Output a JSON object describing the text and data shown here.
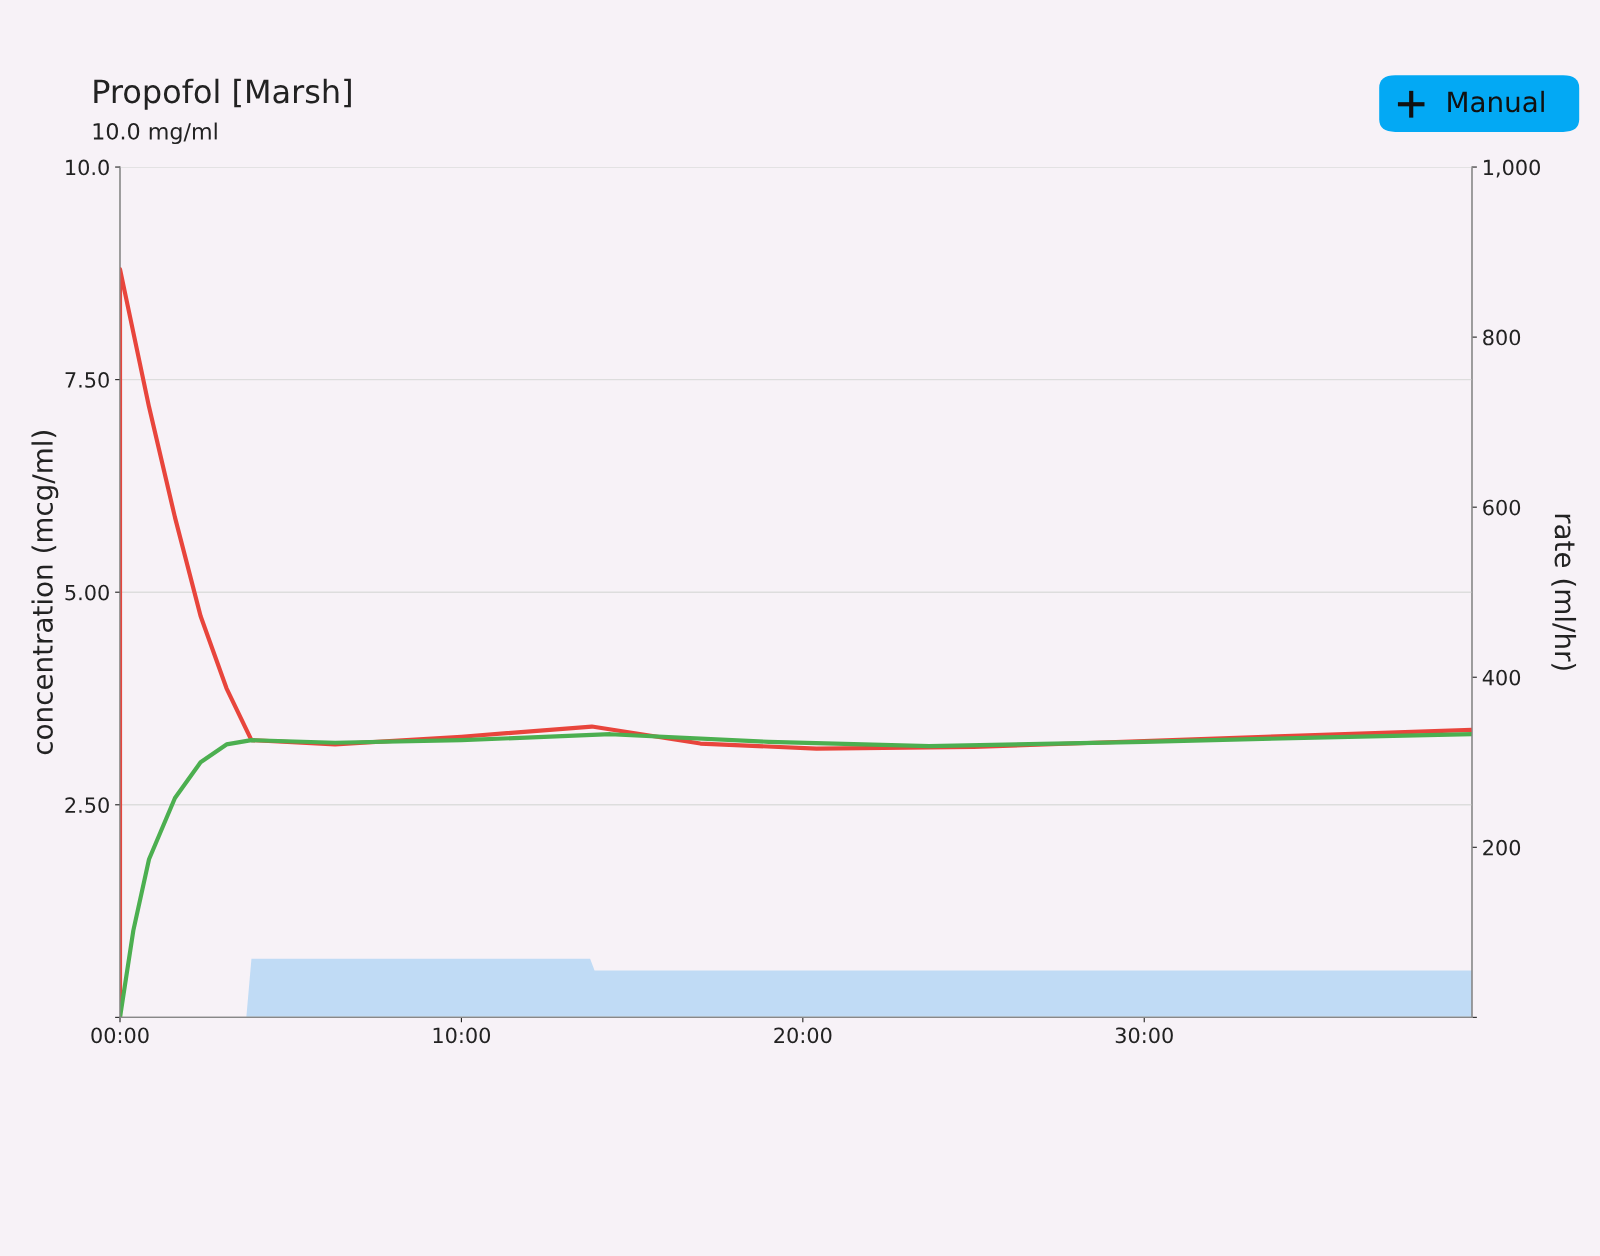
{
  "chart_data": {
    "type": "line",
    "title": "Propofol [Marsh]",
    "subtitle": "10.0 mg/ml",
    "ylabel": "concentration (mcg/ml)",
    "y2label": "rate (ml/hr)",
    "annotations": [
      "Manual"
    ],
    "xlim": [
      0,
      39.6
    ],
    "xticks": [
      {
        "value": 0,
        "label": "00:00"
      },
      {
        "value": 10,
        "label": "10:00"
      },
      {
        "value": 20,
        "label": "20:00"
      },
      {
        "value": 30,
        "label": "30:00"
      }
    ],
    "ylim": [
      0,
      10
    ],
    "yticks": [
      {
        "value": 0,
        "label": null
      },
      {
        "value": 2.5,
        "label": "2.50"
      },
      {
        "value": 5,
        "label": "5.00"
      },
      {
        "value": 7.5,
        "label": "7.50"
      },
      {
        "value": 10,
        "label": "10.0"
      }
    ],
    "y2lim": [
      0,
      1000
    ],
    "y2ticks": [
      {
        "value": 0,
        "label": null
      },
      200,
      400,
      600,
      800,
      {
        "value": 1000,
        "label": "1,000"
      }
    ],
    "grid": "y",
    "legend": false,
    "series": [
      {
        "type": "area",
        "axis": "y2",
        "color": "#c0dbf5",
        "x": [
          3.7,
          3.85,
          13.77,
          13.9,
          39.6
        ],
        "values": [
          0,
          69,
          69,
          55,
          55
        ]
      },
      {
        "color": "#e8453c",
        "x": [
          0,
          0,
          0.85,
          1.61,
          2.36,
          3.12,
          3.85,
          6.3,
          10,
          13.82,
          17,
          20.4,
          25,
          30,
          35,
          39.6
        ],
        "values": [
          0,
          8.8,
          7.18,
          5.88,
          4.72,
          3.87,
          3.26,
          3.21,
          3.3,
          3.42,
          3.22,
          3.16,
          3.18,
          3.25,
          3.32,
          3.38
        ]
      },
      {
        "color": "#4caf50",
        "x": [
          0,
          0.39,
          0.85,
          1.61,
          2.36,
          3.12,
          3.85,
          6.3,
          10,
          14.36,
          19,
          23.7,
          30,
          35,
          39.6
        ],
        "values": [
          0,
          1.02,
          1.86,
          2.58,
          3.0,
          3.21,
          3.26,
          3.23,
          3.26,
          3.33,
          3.24,
          3.19,
          3.24,
          3.29,
          3.33
        ]
      }
    ]
  }
}
